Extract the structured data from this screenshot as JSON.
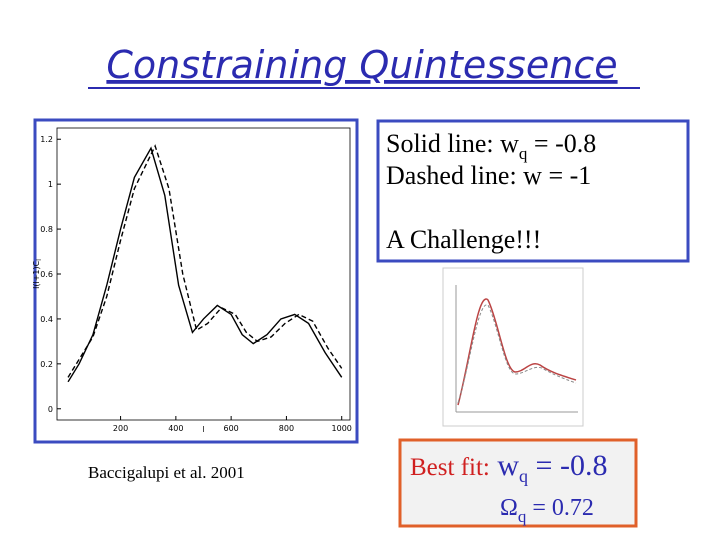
{
  "title": "Constraining Quintessence",
  "legend_box": {
    "solid": {
      "text": "Solid line: w",
      "sub": "q",
      "rest": " = -0.8"
    },
    "dashed": {
      "text": "Dashed line: w = -1"
    },
    "challenge": "A Challenge!!!"
  },
  "caption": "Baccigalupi et al. 2001",
  "best_fit": {
    "label": "Best fit:",
    "w": {
      "text": " w",
      "sub": "q",
      "rest": " = -0.8"
    },
    "omega": {
      "text": "Ω",
      "sub": "q",
      "rest": " = 0.72"
    }
  },
  "plot": {
    "xlabel": "l",
    "ylabel": {
      "text": "l(l+1)C",
      "sub": "l"
    },
    "xlim": [
      -30,
      1030
    ],
    "ylim": [
      -0.05,
      1.25
    ],
    "xticks": [
      200,
      400,
      600,
      800,
      1000
    ],
    "yticks": [
      0,
      0.2,
      0.4,
      0.6,
      0.8,
      1,
      1.2
    ],
    "series": [
      {
        "style": "solid",
        "x": [
          10,
          50,
          100,
          150,
          200,
          250,
          310,
          360,
          410,
          460,
          500,
          550,
          600,
          640,
          680,
          730,
          780,
          830,
          880,
          940,
          1000
        ],
        "values": [
          0.12,
          0.2,
          0.33,
          0.55,
          0.8,
          1.03,
          1.16,
          0.95,
          0.55,
          0.34,
          0.4,
          0.46,
          0.42,
          0.33,
          0.29,
          0.33,
          0.4,
          0.42,
          0.38,
          0.25,
          0.14
        ]
      },
      {
        "style": "dashed",
        "x": [
          10,
          50,
          100,
          150,
          200,
          250,
          325,
          375,
          425,
          475,
          515,
          565,
          615,
          655,
          695,
          745,
          795,
          845,
          895,
          950,
          1000
        ],
        "values": [
          0.14,
          0.22,
          0.32,
          0.5,
          0.75,
          0.98,
          1.17,
          0.98,
          0.6,
          0.35,
          0.38,
          0.45,
          0.42,
          0.34,
          0.3,
          0.32,
          0.38,
          0.42,
          0.39,
          0.27,
          0.18
        ]
      }
    ]
  }
}
